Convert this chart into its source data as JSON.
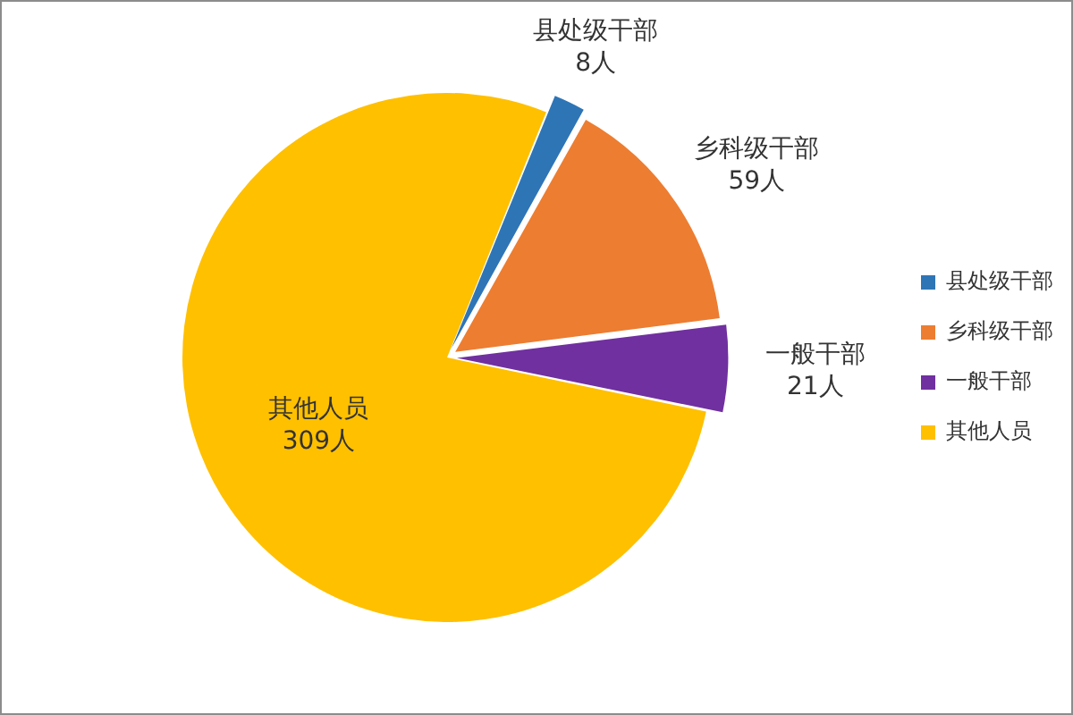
{
  "chart_data": {
    "type": "pie",
    "categories": [
      "县处级干部",
      "乡科级干部",
      "一般干部",
      "其他人员"
    ],
    "values": [
      8,
      59,
      21,
      309
    ],
    "colors": [
      "#2e75b6",
      "#ed7d31",
      "#7030a0",
      "#ffc000"
    ],
    "value_labels": [
      "8人",
      "59人",
      "21人",
      "309人"
    ],
    "legend": "right"
  }
}
